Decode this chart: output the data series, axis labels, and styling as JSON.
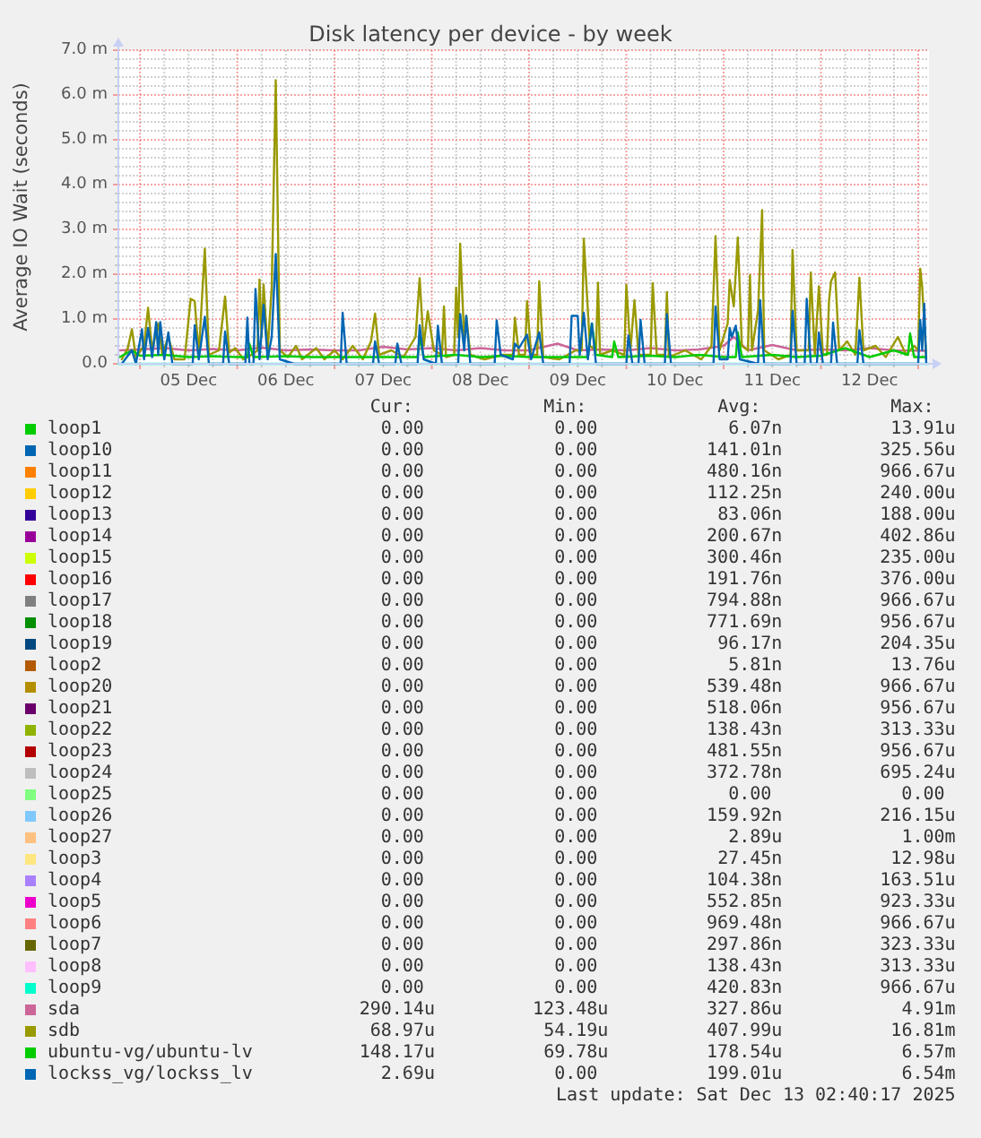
{
  "chart_data": {
    "type": "line",
    "title": "Disk latency per device - by week",
    "ylabel": "Average IO Wait (seconds)",
    "xlim": [
      "2025-12-04T18:40",
      "2025-12-13T02:40"
    ],
    "xticks": [
      {
        "value": "2025-12-05T00:00",
        "label": null
      },
      {
        "value": "2025-12-05T06:00",
        "label": null
      },
      {
        "value": "2025-12-05T12:00",
        "label": "05 Dec"
      },
      {
        "value": "2025-12-05T18:00",
        "label": null
      },
      {
        "value": "2025-12-06T00:00",
        "label": null
      },
      {
        "value": "2025-12-06T06:00",
        "label": null
      },
      {
        "value": "2025-12-06T12:00",
        "label": "06 Dec"
      },
      {
        "value": "2025-12-06T18:00",
        "label": null
      },
      {
        "value": "2025-12-07T00:00",
        "label": null
      },
      {
        "value": "2025-12-07T06:00",
        "label": null
      },
      {
        "value": "2025-12-07T12:00",
        "label": "07 Dec"
      },
      {
        "value": "2025-12-07T18:00",
        "label": null
      },
      {
        "value": "2025-12-08T00:00",
        "label": null
      },
      {
        "value": "2025-12-08T06:00",
        "label": null
      },
      {
        "value": "2025-12-08T12:00",
        "label": "08 Dec"
      },
      {
        "value": "2025-12-08T18:00",
        "label": null
      },
      {
        "value": "2025-12-09T00:00",
        "label": null
      },
      {
        "value": "2025-12-09T06:00",
        "label": null
      },
      {
        "value": "2025-12-09T12:00",
        "label": "09 Dec"
      },
      {
        "value": "2025-12-09T18:00",
        "label": null
      },
      {
        "value": "2025-12-10T00:00",
        "label": null
      },
      {
        "value": "2025-12-10T06:00",
        "label": null
      },
      {
        "value": "2025-12-10T12:00",
        "label": "10 Dec"
      },
      {
        "value": "2025-12-10T18:00",
        "label": null
      },
      {
        "value": "2025-12-11T00:00",
        "label": null
      },
      {
        "value": "2025-12-11T06:00",
        "label": null
      },
      {
        "value": "2025-12-11T12:00",
        "label": "11 Dec"
      },
      {
        "value": "2025-12-11T18:00",
        "label": null
      },
      {
        "value": "2025-12-12T00:00",
        "label": null
      },
      {
        "value": "2025-12-12T06:00",
        "label": null
      },
      {
        "value": "2025-12-12T12:00",
        "label": "12 Dec"
      },
      {
        "value": "2025-12-12T18:00",
        "label": null
      },
      {
        "value": "2025-12-13T00:00",
        "label": null
      }
    ],
    "ylim": [
      0,
      7
    ],
    "yticks": [
      {
        "value": 0,
        "label": "0.0"
      },
      {
        "value": 0.2,
        "label": null
      },
      {
        "value": 0.4,
        "label": null
      },
      {
        "value": 0.6,
        "label": null
      },
      {
        "value": 0.8,
        "label": null
      },
      {
        "value": 1,
        "label": "1.0 m"
      },
      {
        "value": 1.2,
        "label": null
      },
      {
        "value": 1.4,
        "label": null
      },
      {
        "value": 1.6,
        "label": null
      },
      {
        "value": 1.8,
        "label": null
      },
      {
        "value": 2,
        "label": "2.0 m"
      },
      {
        "value": 2.2,
        "label": null
      },
      {
        "value": 2.4,
        "label": null
      },
      {
        "value": 2.6,
        "label": null
      },
      {
        "value": 2.8,
        "label": null
      },
      {
        "value": 3,
        "label": "3.0 m"
      },
      {
        "value": 3.2,
        "label": null
      },
      {
        "value": 3.4,
        "label": null
      },
      {
        "value": 3.6,
        "label": null
      },
      {
        "value": 3.8,
        "label": null
      },
      {
        "value": 4,
        "label": "4.0 m"
      },
      {
        "value": 4.2,
        "label": null
      },
      {
        "value": 4.4,
        "label": null
      },
      {
        "value": 4.6,
        "label": null
      },
      {
        "value": 4.8,
        "label": null
      },
      {
        "value": 5,
        "label": "5.0 m"
      },
      {
        "value": 5.2,
        "label": null
      },
      {
        "value": 5.4,
        "label": null
      },
      {
        "value": 5.6,
        "label": null
      },
      {
        "value": 5.8,
        "label": null
      },
      {
        "value": 6,
        "label": "6.0 m"
      },
      {
        "value": 6.2,
        "label": null
      },
      {
        "value": 6.4,
        "label": null
      },
      {
        "value": 6.6,
        "label": null
      },
      {
        "value": 6.8,
        "label": null
      },
      {
        "value": 7,
        "label": "7.0 m"
      }
    ],
    "grid": true,
    "legend": "bottom",
    "series": [
      {
        "name": "loop1",
        "color": "#00cc00"
      },
      {
        "name": "loop10",
        "color": "#0066b3"
      },
      {
        "name": "loop11",
        "color": "#ff8000"
      },
      {
        "name": "loop12",
        "color": "#ffcc00"
      },
      {
        "name": "loop13",
        "color": "#330099"
      },
      {
        "name": "loop14",
        "color": "#990099"
      },
      {
        "name": "loop15",
        "color": "#ccff00"
      },
      {
        "name": "loop16",
        "color": "#ff0000"
      },
      {
        "name": "loop17",
        "color": "#808080"
      },
      {
        "name": "loop18",
        "color": "#008f00"
      },
      {
        "name": "loop19",
        "color": "#00487d"
      },
      {
        "name": "loop2",
        "color": "#b35a00"
      },
      {
        "name": "loop20",
        "color": "#b38f00"
      },
      {
        "name": "loop21",
        "color": "#6b006b"
      },
      {
        "name": "loop22",
        "color": "#8fb300"
      },
      {
        "name": "loop23",
        "color": "#b30000"
      },
      {
        "name": "loop24",
        "color": "#bebebe"
      },
      {
        "name": "loop25",
        "color": "#80ff80"
      },
      {
        "name": "loop26",
        "color": "#80c9ff"
      },
      {
        "name": "loop27",
        "color": "#ffc080"
      },
      {
        "name": "loop3",
        "color": "#ffe680"
      },
      {
        "name": "loop4",
        "color": "#aa80ff"
      },
      {
        "name": "loop5",
        "color": "#ee00cc"
      },
      {
        "name": "loop6",
        "color": "#ff8080"
      },
      {
        "name": "loop7",
        "color": "#666600"
      },
      {
        "name": "loop8",
        "color": "#ffbfff"
      },
      {
        "name": "loop9",
        "color": "#00ffcc",
        "x": [
          "2025-12-04T18:40",
          "2025-12-13T02:40"
        ],
        "values": [
          0,
          0
        ]
      },
      {
        "name": "sda",
        "color": "#cc6699",
        "x": [
          "2025-12-04T19:00",
          "2025-12-05T00:00",
          "2025-12-05T06:00",
          "2025-12-05T12:00",
          "2025-12-05T18:00",
          "2025-12-06T00:00",
          "2025-12-06T06:00",
          "2025-12-06T12:00",
          "2025-12-06T18:00",
          "2025-12-07T00:00",
          "2025-12-07T06:00",
          "2025-12-07T12:00",
          "2025-12-07T18:00",
          "2025-12-08T00:00",
          "2025-12-08T06:00",
          "2025-12-08T12:00",
          "2025-12-08T18:00",
          "2025-12-09T00:00",
          "2025-12-09T07:00",
          "2025-12-09T12:00",
          "2025-12-09T18:00",
          "2025-12-10T00:00",
          "2025-12-10T06:00",
          "2025-12-10T12:00",
          "2025-12-10T18:00",
          "2025-12-11T00:00",
          "2025-12-11T02:30",
          "2025-12-11T06:00",
          "2025-12-11T12:00",
          "2025-12-11T18:00",
          "2025-12-12T00:00",
          "2025-12-12T06:00",
          "2025-12-12T12:00",
          "2025-12-12T18:00",
          "2025-12-13T02:00"
        ],
        "values": [
          0.3,
          0.32,
          0.35,
          0.3,
          0.33,
          0.3,
          0.36,
          0.3,
          0.32,
          0.3,
          0.3,
          0.38,
          0.32,
          0.35,
          0.3,
          0.35,
          0.3,
          0.3,
          0.45,
          0.3,
          0.32,
          0.3,
          0.35,
          0.3,
          0.32,
          0.4,
          0.6,
          0.3,
          0.42,
          0.3,
          0.32,
          0.3,
          0.35,
          0.3,
          0.29
        ]
      },
      {
        "name": "sdb",
        "color": "#999900",
        "x": [
          "2025-12-04T19:30",
          "2025-12-04T21:00",
          "2025-12-04T22:00",
          "2025-12-04T23:00",
          "2025-12-05T01:00",
          "2025-12-05T02:00",
          "2025-12-05T03:00",
          "2025-12-05T04:30",
          "2025-12-05T05:30",
          "2025-12-05T07:00",
          "2025-12-05T08:30",
          "2025-12-05T11:00",
          "2025-12-05T12:30",
          "2025-12-05T13:30",
          "2025-12-05T14:30",
          "2025-12-05T16:00",
          "2025-12-05T17:00",
          "2025-12-05T19:30",
          "2025-12-05T21:00",
          "2025-12-05T22:00",
          "2025-12-05T23:30",
          "2025-12-06T01:30",
          "2025-12-06T03:30",
          "2025-12-06T05:00",
          "2025-12-06T05:30",
          "2025-12-06T06:00",
          "2025-12-06T06:30",
          "2025-12-06T07:30",
          "2025-12-06T08:30",
          "2025-12-06T09:30",
          "2025-12-06T10:30",
          "2025-12-06T12:30",
          "2025-12-06T14:30",
          "2025-12-06T16:00",
          "2025-12-06T19:30",
          "2025-12-06T21:30",
          "2025-12-07T00:00",
          "2025-12-07T02:00",
          "2025-12-07T04:30",
          "2025-12-07T07:00",
          "2025-12-07T09:00",
          "2025-12-07T10:00",
          "2025-12-07T11:00",
          "2025-12-07T14:00",
          "2025-12-07T17:00",
          "2025-12-07T20:00",
          "2025-12-07T21:00",
          "2025-12-07T22:00",
          "2025-12-07T23:00",
          "2025-12-08T00:30",
          "2025-12-08T02:30",
          "2025-12-08T03:00",
          "2025-12-08T03:30",
          "2025-12-08T05:30",
          "2025-12-08T06:00",
          "2025-12-08T06:30",
          "2025-12-08T07:00",
          "2025-12-08T08:00",
          "2025-12-08T08:30",
          "2025-12-08T09:30",
          "2025-12-08T13:00",
          "2025-12-08T17:30",
          "2025-12-08T20:00",
          "2025-12-08T20:30",
          "2025-12-08T21:30",
          "2025-12-08T23:00",
          "2025-12-08T23:30",
          "2025-12-09T00:30",
          "2025-12-09T02:00",
          "2025-12-09T02:30",
          "2025-12-09T03:30",
          "2025-12-09T07:30",
          "2025-12-09T11:30",
          "2025-12-09T13:00",
          "2025-12-09T13:30",
          "2025-12-09T15:00",
          "2025-12-09T16:30",
          "2025-12-09T17:00",
          "2025-12-09T17:30",
          "2025-12-09T20:30",
          "2025-12-09T23:30",
          "2025-12-10T00:00",
          "2025-12-10T01:00",
          "2025-12-10T02:00",
          "2025-12-10T03:00",
          "2025-12-10T06:00",
          "2025-12-10T06:30",
          "2025-12-10T07:30",
          "2025-12-10T09:30",
          "2025-12-10T10:00",
          "2025-12-10T10:30",
          "2025-12-10T14:30",
          "2025-12-10T18:30",
          "2025-12-10T21:00",
          "2025-12-10T22:00",
          "2025-12-10T23:00",
          "2025-12-11T01:00",
          "2025-12-11T01:30",
          "2025-12-11T02:30",
          "2025-12-11T03:30",
          "2025-12-11T04:30",
          "2025-12-11T06:00",
          "2025-12-11T06:30",
          "2025-12-11T07:00",
          "2025-12-11T08:30",
          "2025-12-11T09:30",
          "2025-12-11T10:00",
          "2025-12-11T13:30",
          "2025-12-11T16:30",
          "2025-12-11T17:00",
          "2025-12-11T18:00",
          "2025-12-11T21:00",
          "2025-12-11T21:30",
          "2025-12-11T22:30",
          "2025-12-11T23:30",
          "2025-12-12T00:30",
          "2025-12-12T01:30",
          "2025-12-12T02:00",
          "2025-12-12T02:30",
          "2025-12-12T03:30",
          "2025-12-12T04:30",
          "2025-12-12T06:30",
          "2025-12-12T08:30",
          "2025-12-12T09:30",
          "2025-12-12T10:30",
          "2025-12-12T13:30",
          "2025-12-12T16:00",
          "2025-12-12T19:00",
          "2025-12-12T21:00",
          "2025-12-12T23:00",
          "2025-12-13T00:00",
          "2025-12-13T00:30",
          "2025-12-13T01:00",
          "2025-12-13T02:00"
        ],
        "values": [
          0.1,
          0.35,
          0.77,
          0.15,
          0.4,
          1.25,
          0.3,
          0.9,
          0.2,
          0.6,
          0.1,
          0.1,
          1.45,
          1.4,
          0.2,
          2.57,
          0.2,
          0.3,
          1.5,
          0.25,
          0.35,
          0.1,
          0.2,
          0.3,
          1.88,
          0.6,
          1.77,
          0.3,
          1.7,
          6.33,
          0.3,
          0.15,
          0.4,
          0.1,
          0.35,
          0.1,
          0.3,
          0.1,
          0.4,
          0.1,
          0.5,
          1.12,
          0.2,
          0.3,
          0.15,
          0.6,
          1.91,
          0.4,
          1.17,
          0.3,
          0.2,
          1.28,
          0.15,
          0.2,
          1.7,
          0.6,
          2.68,
          0.5,
          1.07,
          0.2,
          0.1,
          0.2,
          0.2,
          1.03,
          0.2,
          0.2,
          1.4,
          0.2,
          0.2,
          1.84,
          0.15,
          0.1,
          0.3,
          0.3,
          2.79,
          0.4,
          0.3,
          1.81,
          0.2,
          0.3,
          0.2,
          1.76,
          0.3,
          1.42,
          0.2,
          0.2,
          1.8,
          0.2,
          0.2,
          1.6,
          0.15,
          0.3,
          0.1,
          0.4,
          2.85,
          0.3,
          0.9,
          1.87,
          1.28,
          2.82,
          0.4,
          0.3,
          1.98,
          0.3,
          1.2,
          3.43,
          0.3,
          0.1,
          0.2,
          2.54,
          0.3,
          0.3,
          2.04,
          0.2,
          1.73,
          0.2,
          0.2,
          1.4,
          1.84,
          2.04,
          0.3,
          0.5,
          0.2,
          1.92,
          0.3,
          0.4,
          0.15,
          0.6,
          0.2,
          0.4,
          0.3,
          2.12,
          1.7,
          0.1
        ]
      },
      {
        "name": "ubuntu-vg/ubuntu-lv",
        "color": "#00cc00",
        "x": [
          "2025-12-04T19:00",
          "2025-12-04T22:00",
          "2025-12-05T00:00",
          "2025-12-05T06:00",
          "2025-12-05T12:00",
          "2025-12-05T18:00",
          "2025-12-06T00:00",
          "2025-12-06T02:30",
          "2025-12-06T03:00",
          "2025-12-06T04:00",
          "2025-12-06T12:00",
          "2025-12-06T18:00",
          "2025-12-07T12:00",
          "2025-12-07T20:30",
          "2025-12-07T21:00",
          "2025-12-07T22:00",
          "2025-12-08T06:00",
          "2025-12-08T12:00",
          "2025-12-08T18:00",
          "2025-12-09T00:00",
          "2025-12-09T14:30",
          "2025-12-09T15:30",
          "2025-12-09T16:30",
          "2025-12-09T20:30",
          "2025-12-09T21:00",
          "2025-12-09T22:00",
          "2025-12-10T06:00",
          "2025-12-10T12:00",
          "2025-12-10T18:00",
          "2025-12-11T00:00",
          "2025-12-11T03:00",
          "2025-12-11T03:30",
          "2025-12-11T04:30",
          "2025-12-11T12:00",
          "2025-12-11T18:00",
          "2025-12-12T00:00",
          "2025-12-12T06:00",
          "2025-12-12T12:00",
          "2025-12-12T18:00",
          "2025-12-12T21:30",
          "2025-12-12T22:00",
          "2025-12-12T23:00",
          "2025-12-13T02:00"
        ],
        "values": [
          0.15,
          0.3,
          0.18,
          0.2,
          0.15,
          0.17,
          0.15,
          0.15,
          0.45,
          0.15,
          0.17,
          0.15,
          0.15,
          0.15,
          0.6,
          0.15,
          0.2,
          0.15,
          0.18,
          0.15,
          0.15,
          0.9,
          0.2,
          0.15,
          0.5,
          0.15,
          0.18,
          0.15,
          0.2,
          0.15,
          0.15,
          0.7,
          0.15,
          0.2,
          0.15,
          0.18,
          0.35,
          0.15,
          0.3,
          0.2,
          0.68,
          0.15,
          0.15
        ]
      },
      {
        "name": "lockss_vg/lockss_lv",
        "color": "#0066b3",
        "x": [
          "2025-12-04T19:30",
          "2025-12-04T22:00",
          "2025-12-04T23:00",
          "2025-12-05T00:30",
          "2025-12-05T01:00",
          "2025-12-05T02:00",
          "2025-12-05T03:00",
          "2025-12-05T04:00",
          "2025-12-05T04:30",
          "2025-12-05T05:00",
          "2025-12-05T06:00",
          "2025-12-05T07:00",
          "2025-12-05T08:00",
          "2025-12-05T13:00",
          "2025-12-05T13:30",
          "2025-12-05T14:30",
          "2025-12-05T16:00",
          "2025-12-05T17:00",
          "2025-12-05T20:30",
          "2025-12-05T21:00",
          "2025-12-05T22:00",
          "2025-12-06T02:00",
          "2025-12-06T02:30",
          "2025-12-06T03:00",
          "2025-12-06T04:00",
          "2025-12-06T04:30",
          "2025-12-06T05:30",
          "2025-12-06T06:30",
          "2025-12-06T07:30",
          "2025-12-06T08:30",
          "2025-12-06T09:30",
          "2025-12-06T10:30",
          "2025-12-06T14:00",
          "2025-12-07T01:30",
          "2025-12-07T02:00",
          "2025-12-07T03:00",
          "2025-12-07T09:30",
          "2025-12-07T10:00",
          "2025-12-07T11:00",
          "2025-12-07T15:00",
          "2025-12-07T15:30",
          "2025-12-07T16:30",
          "2025-12-07T20:30",
          "2025-12-07T21:00",
          "2025-12-07T22:00",
          "2025-12-08T01:00",
          "2025-12-08T01:30",
          "2025-12-08T02:30",
          "2025-12-08T06:30",
          "2025-12-08T07:00",
          "2025-12-08T08:00",
          "2025-12-08T08:30",
          "2025-12-08T09:30",
          "2025-12-08T15:30",
          "2025-12-08T16:00",
          "2025-12-08T17:00",
          "2025-12-08T20:00",
          "2025-12-08T20:30",
          "2025-12-08T21:30",
          "2025-12-08T23:30",
          "2025-12-09T00:30",
          "2025-12-09T02:30",
          "2025-12-09T03:30",
          "2025-12-09T10:00",
          "2025-12-09T10:30",
          "2025-12-09T12:00",
          "2025-12-09T12:30",
          "2025-12-09T13:30",
          "2025-12-09T14:30",
          "2025-12-09T15:30",
          "2025-12-09T16:30",
          "2025-12-10T00:00",
          "2025-12-10T00:30",
          "2025-12-10T01:30",
          "2025-12-10T03:00",
          "2025-12-10T03:30",
          "2025-12-10T04:30",
          "2025-12-10T09:30",
          "2025-12-10T10:00",
          "2025-12-10T11:00",
          "2025-12-10T21:30",
          "2025-12-10T22:00",
          "2025-12-10T23:00",
          "2025-12-11T01:00",
          "2025-12-11T01:30",
          "2025-12-11T02:00",
          "2025-12-11T03:00",
          "2025-12-11T04:00",
          "2025-12-11T08:30",
          "2025-12-11T09:00",
          "2025-12-11T10:00",
          "2025-12-11T16:30",
          "2025-12-11T17:00",
          "2025-12-11T18:00",
          "2025-12-11T20:00",
          "2025-12-11T20:30",
          "2025-12-11T21:30",
          "2025-12-11T23:00",
          "2025-12-11T23:30",
          "2025-12-12T00:30",
          "2025-12-12T02:30",
          "2025-12-12T03:00",
          "2025-12-12T04:00",
          "2025-12-12T09:00",
          "2025-12-12T09:30",
          "2025-12-12T10:30",
          "2025-12-13T00:00",
          "2025-12-13T00:30",
          "2025-12-13T01:00",
          "2025-12-13T01:30",
          "2025-12-13T02:00"
        ],
        "values": [
          0,
          0.3,
          0,
          0.77,
          0.1,
          0.8,
          0.15,
          0.93,
          0.2,
          0.93,
          0.1,
          0.7,
          0,
          0,
          0.86,
          0.1,
          1.05,
          0,
          0,
          0.72,
          0,
          0,
          1.03,
          0,
          0,
          1.67,
          0.1,
          1.32,
          0.1,
          0.6,
          2.45,
          0.1,
          0,
          0,
          1.14,
          0,
          0,
          0.5,
          0,
          0,
          0.45,
          0,
          0,
          0.86,
          0.1,
          0,
          0.85,
          0,
          0,
          1.11,
          0.3,
          1.07,
          0,
          0,
          0.97,
          0.2,
          0.1,
          0.45,
          0.35,
          0.65,
          0.1,
          0.7,
          0,
          0,
          1.07,
          1.07,
          0.2,
          1.14,
          0.1,
          0.9,
          0,
          0,
          0.63,
          0,
          0,
          0.98,
          0,
          0,
          1.11,
          0,
          0,
          1.28,
          0.1,
          0.1,
          0.8,
          0.6,
          0.85,
          0.1,
          0,
          1.42,
          0,
          0,
          1.18,
          0,
          0,
          1.45,
          0,
          0,
          0.7,
          0,
          0,
          0.92,
          0,
          0,
          0.75,
          0,
          0,
          0.98,
          0.3,
          1.34,
          0
        ]
      }
    ],
    "annotations": [
      "Cur:",
      "Min:",
      "Avg:",
      "Max:",
      "0.00",
      "0.00",
      "6.07n",
      "13.91u",
      "0.00",
      "0.00",
      "141.01n",
      "325.56u",
      "0.00",
      "0.00",
      "480.16n",
      "966.67u",
      "0.00",
      "0.00",
      "112.25n",
      "240.00u",
      "0.00",
      "0.00",
      "83.06n",
      "188.00u",
      "0.00",
      "0.00",
      "200.67n",
      "402.86u",
      "0.00",
      "0.00",
      "300.46n",
      "235.00u",
      "0.00",
      "0.00",
      "191.76n",
      "376.00u",
      "0.00",
      "0.00",
      "794.88n",
      "966.67u",
      "0.00",
      "0.00",
      "771.69n",
      "956.67u",
      "0.00",
      "0.00",
      "96.17n",
      "204.35u",
      "0.00",
      "0.00",
      "5.81n",
      "13.76u",
      "0.00",
      "0.00",
      "539.48n",
      "966.67u",
      "0.00",
      "0.00",
      "518.06n",
      "956.67u",
      "0.00",
      "0.00",
      "138.43n",
      "313.33u",
      "0.00",
      "0.00",
      "481.55n",
      "956.67u",
      "0.00",
      "0.00",
      "372.78n",
      "695.24u",
      "0.00",
      "0.00",
      "0.00",
      "0.00",
      "0.00",
      "0.00",
      "159.92n",
      "216.15u",
      "0.00",
      "0.00",
      "2.89u",
      "1.00m",
      "0.00",
      "0.00",
      "27.45n",
      "12.98u",
      "0.00",
      "0.00",
      "104.38n",
      "163.51u",
      "0.00",
      "0.00",
      "552.85n",
      "923.33u",
      "0.00",
      "0.00",
      "969.48n",
      "966.67u",
      "0.00",
      "0.00",
      "297.86n",
      "323.33u",
      "0.00",
      "0.00",
      "138.43n",
      "313.33u",
      "0.00",
      "0.00",
      "420.83n",
      "966.67u",
      "290.14u",
      "123.48u",
      "327.86u",
      "4.91m",
      "68.97u",
      "54.19u",
      "407.99u",
      "16.81m",
      "148.17u",
      "69.78u",
      "178.54u",
      "6.57m",
      "2.69u",
      "0.00",
      "199.01u",
      "6.54m",
      "Last update: Sat Dec 13 02:40:17 2025"
    ]
  }
}
